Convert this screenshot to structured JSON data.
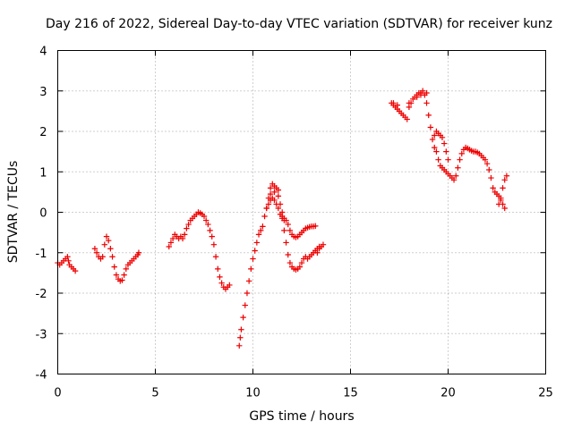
{
  "chart_data": {
    "type": "scatter",
    "title": "Day 216 of 2022, Sidereal Day-to-day VTEC variation (SDTVAR) for receiver kunz",
    "xlabel": "GPS time / hours",
    "ylabel": "SDTVAR / TECUs",
    "xlim": [
      0,
      25
    ],
    "ylim": [
      -4,
      4
    ],
    "xticks": [
      "0",
      "5",
      "10",
      "15",
      "20",
      "25"
    ],
    "yticks": [
      "-4",
      "-3",
      "-2",
      "-1",
      "0",
      "1",
      "2",
      "3",
      "4"
    ],
    "grid": true,
    "marker": "plus",
    "color": "#ee0000",
    "series": [
      {
        "values": [
          [
            0.0,
            -1.25
          ],
          [
            0.1,
            -1.3
          ],
          [
            0.2,
            -1.25
          ],
          [
            0.3,
            -1.2
          ],
          [
            0.4,
            -1.15
          ],
          [
            0.5,
            -1.1
          ],
          [
            0.55,
            -1.2
          ],
          [
            0.6,
            -1.3
          ],
          [
            0.7,
            -1.35
          ],
          [
            0.8,
            -1.4
          ],
          [
            0.9,
            -1.45
          ],
          [
            1.9,
            -0.9
          ],
          [
            2.0,
            -1.0
          ],
          [
            2.1,
            -1.1
          ],
          [
            2.2,
            -1.15
          ],
          [
            2.3,
            -1.1
          ],
          [
            2.4,
            -0.8
          ],
          [
            2.5,
            -0.6
          ],
          [
            2.6,
            -0.7
          ],
          [
            2.7,
            -0.9
          ],
          [
            2.8,
            -1.1
          ],
          [
            2.9,
            -1.35
          ],
          [
            3.0,
            -1.55
          ],
          [
            3.1,
            -1.65
          ],
          [
            3.2,
            -1.7
          ],
          [
            3.3,
            -1.68
          ],
          [
            3.4,
            -1.55
          ],
          [
            3.5,
            -1.4
          ],
          [
            3.6,
            -1.3
          ],
          [
            3.7,
            -1.25
          ],
          [
            3.8,
            -1.2
          ],
          [
            3.9,
            -1.15
          ],
          [
            4.0,
            -1.1
          ],
          [
            4.1,
            -1.05
          ],
          [
            4.15,
            -1.0
          ],
          [
            5.7,
            -0.85
          ],
          [
            5.8,
            -0.75
          ],
          [
            5.9,
            -0.65
          ],
          [
            6.0,
            -0.55
          ],
          [
            6.1,
            -0.6
          ],
          [
            6.2,
            -0.65
          ],
          [
            6.3,
            -0.6
          ],
          [
            6.4,
            -0.65
          ],
          [
            6.5,
            -0.55
          ],
          [
            6.6,
            -0.4
          ],
          [
            6.7,
            -0.3
          ],
          [
            6.8,
            -0.2
          ],
          [
            6.9,
            -0.15
          ],
          [
            7.0,
            -0.1
          ],
          [
            7.1,
            -0.05
          ],
          [
            7.2,
            0.0
          ],
          [
            7.3,
            -0.02
          ],
          [
            7.4,
            -0.05
          ],
          [
            7.5,
            -0.1
          ],
          [
            7.6,
            -0.2
          ],
          [
            7.7,
            -0.3
          ],
          [
            7.8,
            -0.45
          ],
          [
            7.9,
            -0.6
          ],
          [
            8.0,
            -0.8
          ],
          [
            8.1,
            -1.1
          ],
          [
            8.2,
            -1.4
          ],
          [
            8.3,
            -1.6
          ],
          [
            8.4,
            -1.75
          ],
          [
            8.5,
            -1.85
          ],
          [
            8.6,
            -1.9
          ],
          [
            8.7,
            -1.85
          ],
          [
            8.8,
            -1.8
          ],
          [
            9.3,
            -3.3
          ],
          [
            9.35,
            -3.1
          ],
          [
            9.4,
            -2.9
          ],
          [
            9.5,
            -2.6
          ],
          [
            9.6,
            -2.3
          ],
          [
            9.7,
            -2.0
          ],
          [
            9.8,
            -1.7
          ],
          [
            9.9,
            -1.4
          ],
          [
            10.0,
            -1.15
          ],
          [
            10.1,
            -0.95
          ],
          [
            10.2,
            -0.75
          ],
          [
            10.3,
            -0.55
          ],
          [
            10.4,
            -0.45
          ],
          [
            10.5,
            -0.35
          ],
          [
            10.6,
            -0.1
          ],
          [
            10.7,
            0.1
          ],
          [
            10.8,
            0.35
          ],
          [
            10.9,
            0.6
          ],
          [
            11.0,
            0.7
          ],
          [
            11.1,
            0.65
          ],
          [
            11.2,
            0.6
          ],
          [
            11.3,
            0.55
          ],
          [
            11.4,
            0.2
          ],
          [
            11.5,
            -0.15
          ],
          [
            11.6,
            -0.45
          ],
          [
            11.7,
            -0.75
          ],
          [
            11.8,
            -1.05
          ],
          [
            11.9,
            -1.25
          ],
          [
            12.0,
            -1.35
          ],
          [
            12.1,
            -1.4
          ],
          [
            12.2,
            -1.42
          ],
          [
            12.3,
            -1.4
          ],
          [
            12.4,
            -1.35
          ],
          [
            12.5,
            -1.25
          ],
          [
            12.6,
            -1.15
          ],
          [
            12.7,
            -1.1
          ],
          [
            12.8,
            -1.15
          ],
          [
            12.9,
            -1.1
          ],
          [
            13.0,
            -1.05
          ],
          [
            13.1,
            -1.0
          ],
          [
            13.2,
            -0.95
          ],
          [
            13.3,
            -0.9
          ],
          [
            13.4,
            -0.85
          ],
          [
            10.7,
            0.1
          ],
          [
            10.8,
            0.2
          ],
          [
            10.9,
            0.3
          ],
          [
            11.0,
            0.35
          ],
          [
            11.1,
            0.3
          ],
          [
            11.2,
            0.2
          ],
          [
            11.3,
            0.1
          ],
          [
            11.4,
            -0.05
          ],
          [
            11.5,
            -0.1
          ],
          [
            11.6,
            -0.15
          ],
          [
            11.7,
            -0.2
          ],
          [
            11.8,
            -0.3
          ],
          [
            11.9,
            -0.45
          ],
          [
            12.0,
            -0.55
          ],
          [
            12.1,
            -0.6
          ],
          [
            12.2,
            -0.62
          ],
          [
            12.3,
            -0.6
          ],
          [
            12.4,
            -0.55
          ],
          [
            12.5,
            -0.5
          ],
          [
            12.6,
            -0.45
          ],
          [
            12.7,
            -0.4
          ],
          [
            12.8,
            -0.38
          ],
          [
            12.9,
            -0.36
          ],
          [
            13.0,
            -0.35
          ],
          [
            13.1,
            -0.35
          ],
          [
            13.2,
            -0.34
          ],
          [
            17.1,
            2.7
          ],
          [
            17.2,
            2.65
          ],
          [
            17.3,
            2.6
          ],
          [
            17.4,
            2.55
          ],
          [
            17.5,
            2.5
          ],
          [
            17.6,
            2.45
          ],
          [
            17.7,
            2.4
          ],
          [
            17.8,
            2.35
          ],
          [
            17.9,
            2.3
          ],
          [
            18.0,
            2.6
          ],
          [
            18.1,
            2.7
          ],
          [
            18.2,
            2.8
          ],
          [
            18.3,
            2.85
          ],
          [
            18.4,
            2.9
          ],
          [
            18.5,
            2.95
          ],
          [
            18.6,
            2.95
          ],
          [
            18.7,
            3.0
          ],
          [
            18.8,
            2.9
          ],
          [
            18.9,
            2.7
          ],
          [
            19.0,
            2.4
          ],
          [
            19.1,
            2.1
          ],
          [
            19.2,
            1.8
          ],
          [
            19.3,
            1.6
          ],
          [
            19.4,
            1.5
          ],
          [
            19.5,
            1.3
          ],
          [
            19.6,
            1.15
          ],
          [
            19.7,
            1.1
          ],
          [
            19.8,
            1.05
          ],
          [
            19.9,
            1.0
          ],
          [
            20.0,
            0.95
          ],
          [
            20.1,
            0.9
          ],
          [
            20.2,
            0.85
          ],
          [
            20.3,
            0.8
          ],
          [
            20.4,
            0.9
          ],
          [
            20.5,
            1.1
          ],
          [
            20.6,
            1.3
          ],
          [
            20.7,
            1.45
          ],
          [
            20.8,
            1.55
          ],
          [
            20.9,
            1.6
          ],
          [
            21.0,
            1.58
          ],
          [
            21.1,
            1.55
          ],
          [
            21.2,
            1.52
          ],
          [
            21.3,
            1.5
          ],
          [
            21.4,
            1.5
          ],
          [
            21.5,
            1.48
          ],
          [
            21.6,
            1.45
          ],
          [
            21.7,
            1.4
          ],
          [
            21.8,
            1.35
          ],
          [
            21.9,
            1.3
          ],
          [
            22.0,
            1.2
          ],
          [
            22.1,
            1.05
          ],
          [
            22.2,
            0.85
          ],
          [
            22.3,
            0.6
          ],
          [
            22.4,
            0.5
          ],
          [
            22.5,
            0.45
          ],
          [
            22.6,
            0.4
          ],
          [
            22.7,
            0.3
          ],
          [
            22.8,
            0.2
          ],
          [
            22.9,
            0.1
          ],
          [
            19.3,
            1.9
          ],
          [
            19.4,
            2.0
          ],
          [
            19.5,
            1.95
          ],
          [
            19.6,
            1.9
          ],
          [
            19.7,
            1.85
          ],
          [
            19.8,
            1.7
          ],
          [
            19.9,
            1.5
          ],
          [
            20.0,
            1.3
          ],
          [
            17.2,
            2.7
          ],
          [
            17.4,
            2.65
          ],
          [
            18.0,
            2.7
          ],
          [
            18.4,
            2.85
          ],
          [
            18.6,
            2.9
          ],
          [
            18.9,
            2.95
          ],
          [
            22.6,
            0.2
          ],
          [
            22.7,
            0.35
          ],
          [
            22.8,
            0.6
          ],
          [
            22.9,
            0.8
          ],
          [
            23.0,
            0.9
          ],
          [
            13.3,
            -1.0
          ],
          [
            13.4,
            -0.9
          ],
          [
            13.5,
            -0.85
          ],
          [
            13.6,
            -0.8
          ],
          [
            10.9,
            0.45
          ],
          [
            11.1,
            0.5
          ],
          [
            11.3,
            0.4
          ],
          [
            11.5,
            0.0
          ],
          [
            11.6,
            -0.2
          ]
        ]
      }
    ]
  }
}
